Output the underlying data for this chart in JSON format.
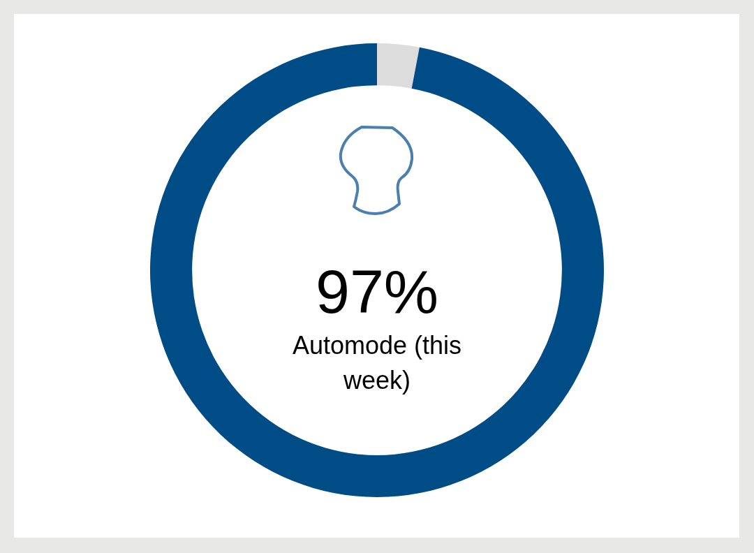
{
  "chart_data": {
    "type": "donut",
    "title": "Automode (this week)",
    "categories": [
      null,
      null
    ],
    "values": [
      3,
      97
    ],
    "colors": [
      "#dcdcdc",
      "#004c87"
    ],
    "value_labels": [
      null,
      "97%"
    ],
    "legend": false
  }
}
